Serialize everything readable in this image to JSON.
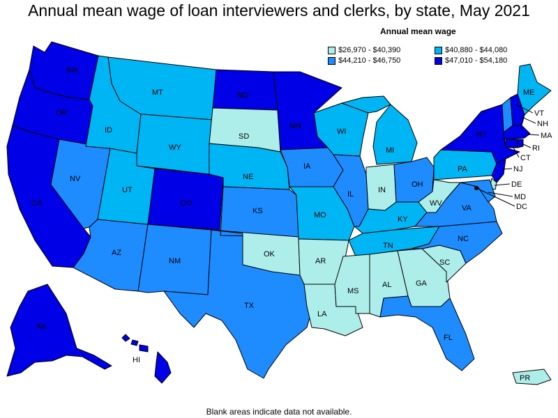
{
  "title": "Annual mean wage of loan interviewers and clerks, by state, May 2021",
  "legend": {
    "title": "Annual mean wage",
    "items": [
      {
        "label": "$26,970 - $40,390",
        "color": "#aeeeea"
      },
      {
        "label": "$40,880 - $44,080",
        "color": "#00b5f4"
      },
      {
        "label": "$44,210 - $46,750",
        "color": "#1e8cff"
      },
      {
        "label": "$47,010 - $54,180",
        "color": "#0000e6"
      }
    ]
  },
  "footnote": "Blank areas indicate data not available.",
  "states": {
    "WA": {
      "label": "WA",
      "bin": 3
    },
    "OR": {
      "label": "OR",
      "bin": 3
    },
    "CA": {
      "label": "CA",
      "bin": 3
    },
    "ID": {
      "label": "ID",
      "bin": 1
    },
    "MT": {
      "label": "MT",
      "bin": 1
    },
    "WY": {
      "label": "WY",
      "bin": 1
    },
    "NV": {
      "label": "NV",
      "bin": 2
    },
    "UT": {
      "label": "UT",
      "bin": 1
    },
    "CO": {
      "label": "CO",
      "bin": 3
    },
    "AZ": {
      "label": "AZ",
      "bin": 2
    },
    "NM": {
      "label": "NM",
      "bin": 2
    },
    "TX": {
      "label": "TX",
      "bin": 2
    },
    "ND": {
      "label": "ND",
      "bin": 3
    },
    "SD": {
      "label": "SD",
      "bin": 0
    },
    "NE": {
      "label": "NE",
      "bin": 1
    },
    "KS": {
      "label": "KS",
      "bin": 2
    },
    "OK": {
      "label": "OK",
      "bin": 0
    },
    "MN": {
      "label": "MN",
      "bin": 3
    },
    "IA": {
      "label": "IA",
      "bin": 2
    },
    "MO": {
      "label": "MO",
      "bin": 1
    },
    "AR": {
      "label": "AR",
      "bin": 0
    },
    "LA": {
      "label": "LA",
      "bin": 0
    },
    "WI": {
      "label": "WI",
      "bin": 1
    },
    "IL": {
      "label": "IL",
      "bin": 2
    },
    "MI": {
      "label": "MI",
      "bin": 1
    },
    "IN": {
      "label": "IN",
      "bin": 0
    },
    "OH": {
      "label": "OH",
      "bin": 2
    },
    "KY": {
      "label": "KY",
      "bin": 1
    },
    "TN": {
      "label": "TN",
      "bin": 1
    },
    "MS": {
      "label": "MS",
      "bin": 0
    },
    "AL": {
      "label": "AL",
      "bin": 0
    },
    "GA": {
      "label": "GA",
      "bin": 0
    },
    "FL": {
      "label": "FL",
      "bin": 2
    },
    "SC": {
      "label": "SC",
      "bin": 0
    },
    "NC": {
      "label": "NC",
      "bin": 2
    },
    "VA": {
      "label": "VA",
      "bin": 2
    },
    "WV": {
      "label": "WV",
      "bin": 0
    },
    "PA": {
      "label": "PA",
      "bin": 1
    },
    "NY": {
      "label": "NY",
      "bin": 3
    },
    "ME": {
      "label": "ME",
      "bin": 1
    },
    "VT": {
      "label": "VT",
      "bin": 2
    },
    "NH": {
      "label": "NH",
      "bin": 3
    },
    "MA": {
      "label": "MA",
      "bin": 3
    },
    "RI": {
      "label": "RI",
      "bin": 3
    },
    "CT": {
      "label": "CT",
      "bin": 3
    },
    "NJ": {
      "label": "NJ",
      "bin": 3
    },
    "DE": {
      "label": "DE",
      "bin": 0
    },
    "MD": {
      "label": "MD",
      "bin": 2
    },
    "DC": {
      "label": "DC",
      "bin": 3
    },
    "AK": {
      "label": "AK",
      "bin": 3
    },
    "HI": {
      "label": "HI",
      "bin": 3
    },
    "PR": {
      "label": "PR",
      "bin": 0
    }
  }
}
